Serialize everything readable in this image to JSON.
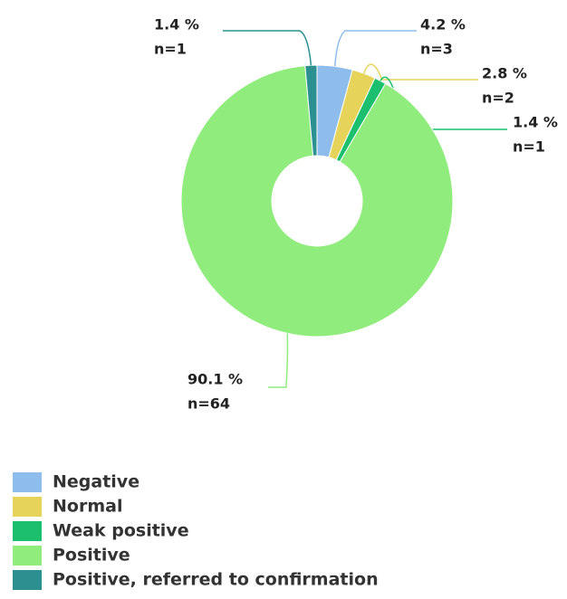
{
  "chart_data": {
    "type": "pie",
    "donut": true,
    "categories": [
      "Negative",
      "Normal",
      "Weak positive",
      "Positive",
      "Positive, referred to confirmation"
    ],
    "values": [
      4.2,
      2.8,
      1.4,
      90.1,
      1.4
    ],
    "value_labels": [
      "4.2 %",
      "2.8 %",
      "1.4 %",
      "90.1 %",
      "1.4 %"
    ],
    "counts": [
      3,
      2,
      1,
      64,
      1
    ],
    "count_labels": [
      "n=3",
      "n=2",
      "n=1",
      "n=64",
      "n=1"
    ],
    "colors": [
      "#8ebdec",
      "#e5d35a",
      "#1bbf6e",
      "#90ec7d",
      "#2b908f"
    ],
    "legend": "bottom-left"
  }
}
